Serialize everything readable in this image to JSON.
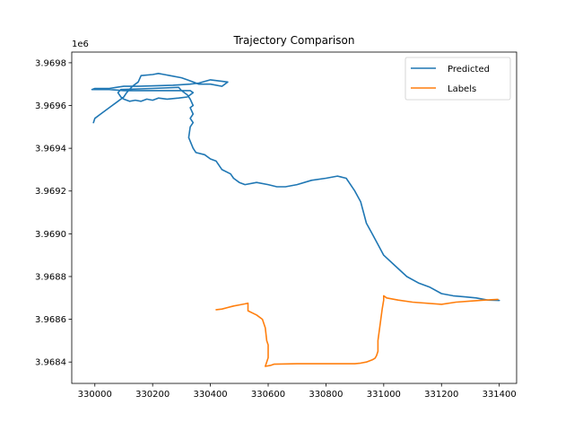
{
  "chart_data": {
    "type": "line",
    "title": "Trajectory Comparison",
    "xlabel": "",
    "ylabel": "",
    "y_offset_label": "1e6",
    "xlim": [
      329920,
      331460
    ],
    "ylim": [
      3968300,
      3969850
    ],
    "x_ticks": [
      330000,
      330200,
      330400,
      330600,
      330800,
      331000,
      331200,
      331400
    ],
    "x_tick_labels": [
      "330000",
      "330200",
      "330400",
      "330600",
      "330800",
      "331000",
      "331200",
      "331400"
    ],
    "y_ticks": [
      3968400,
      3968600,
      3968800,
      3969000,
      3969200,
      3969400,
      3969600,
      3969800
    ],
    "y_tick_labels": [
      "3.9684",
      "3.9686",
      "3.9688",
      "3.9690",
      "3.9692",
      "3.9694",
      "3.9696",
      "3.9698"
    ],
    "grid": false,
    "legend_position": "top-right",
    "series": [
      {
        "name": "Predicted",
        "color": "#1f77b4",
        "points": [
          [
            329995,
            3969520
          ],
          [
            330000,
            3969540
          ],
          [
            330020,
            3969560
          ],
          [
            330060,
            3969600
          ],
          [
            330080,
            3969620
          ],
          [
            330100,
            3969640
          ],
          [
            330110,
            3969660
          ],
          [
            330130,
            3969690
          ],
          [
            330140,
            3969700
          ],
          [
            330150,
            3969710
          ],
          [
            330160,
            3969740
          ],
          [
            330200,
            3969745
          ],
          [
            330220,
            3969750
          ],
          [
            330240,
            3969745
          ],
          [
            330260,
            3969740
          ],
          [
            330300,
            3969730
          ],
          [
            330320,
            3969720
          ],
          [
            330340,
            3969710
          ],
          [
            330360,
            3969700
          ],
          [
            330400,
            3969700
          ],
          [
            330440,
            3969690
          ],
          [
            330460,
            3969710
          ],
          [
            330400,
            3969720
          ],
          [
            330360,
            3969705
          ],
          [
            330330,
            3969700
          ],
          [
            330270,
            3969695
          ],
          [
            330150,
            3969690
          ],
          [
            330100,
            3969690
          ],
          [
            330050,
            3969680
          ],
          [
            330000,
            3969680
          ],
          [
            329990,
            3969675
          ],
          [
            330050,
            3969675
          ],
          [
            330100,
            3969670
          ],
          [
            330150,
            3969670
          ],
          [
            330200,
            3969670
          ],
          [
            330260,
            3969670
          ],
          [
            330300,
            3969670
          ],
          [
            330330,
            3969670
          ],
          [
            330340,
            3969660
          ],
          [
            330330,
            3969650
          ],
          [
            330320,
            3969640
          ],
          [
            330290,
            3969635
          ],
          [
            330250,
            3969630
          ],
          [
            330220,
            3969635
          ],
          [
            330200,
            3969625
          ],
          [
            330180,
            3969630
          ],
          [
            330160,
            3969620
          ],
          [
            330140,
            3969625
          ],
          [
            330120,
            3969620
          ],
          [
            330100,
            3969630
          ],
          [
            330090,
            3969640
          ],
          [
            330080,
            3969660
          ],
          [
            330090,
            3969675
          ],
          [
            330200,
            3969680
          ],
          [
            330290,
            3969685
          ],
          [
            330300,
            3969670
          ],
          [
            330320,
            3969650
          ],
          [
            330330,
            3969630
          ],
          [
            330340,
            3969600
          ],
          [
            330330,
            3969590
          ],
          [
            330340,
            3969560
          ],
          [
            330330,
            3969540
          ],
          [
            330340,
            3969520
          ],
          [
            330330,
            3969500
          ],
          [
            330325,
            3969450
          ],
          [
            330340,
            3969400
          ],
          [
            330350,
            3969380
          ],
          [
            330380,
            3969370
          ],
          [
            330400,
            3969350
          ],
          [
            330420,
            3969340
          ],
          [
            330440,
            3969300
          ],
          [
            330470,
            3969280
          ],
          [
            330480,
            3969260
          ],
          [
            330500,
            3969240
          ],
          [
            330520,
            3969230
          ],
          [
            330560,
            3969240
          ],
          [
            330600,
            3969230
          ],
          [
            330630,
            3969220
          ],
          [
            330660,
            3969220
          ],
          [
            330700,
            3969230
          ],
          [
            330750,
            3969250
          ],
          [
            330800,
            3969260
          ],
          [
            330840,
            3969270
          ],
          [
            330870,
            3969260
          ],
          [
            330880,
            3969240
          ],
          [
            330900,
            3969200
          ],
          [
            330920,
            3969150
          ],
          [
            330930,
            3969100
          ],
          [
            330940,
            3969050
          ],
          [
            330960,
            3969000
          ],
          [
            330980,
            3968950
          ],
          [
            331000,
            3968900
          ],
          [
            331040,
            3968850
          ],
          [
            331080,
            3968800
          ],
          [
            331120,
            3968770
          ],
          [
            331160,
            3968750
          ],
          [
            331200,
            3968720
          ],
          [
            331240,
            3968710
          ],
          [
            331280,
            3968705
          ],
          [
            331320,
            3968700
          ],
          [
            331360,
            3968690
          ],
          [
            331400,
            3968688
          ]
        ]
      },
      {
        "name": "Labels",
        "color": "#ff7f0e",
        "points": [
          [
            330420,
            3968645
          ],
          [
            330440,
            3968648
          ],
          [
            330460,
            3968655
          ],
          [
            330480,
            3968662
          ],
          [
            330500,
            3968667
          ],
          [
            330520,
            3968672
          ],
          [
            330530,
            3968675
          ],
          [
            330530,
            3968640
          ],
          [
            330560,
            3968620
          ],
          [
            330580,
            3968600
          ],
          [
            330590,
            3968560
          ],
          [
            330595,
            3968500
          ],
          [
            330600,
            3968480
          ],
          [
            330600,
            3968420
          ],
          [
            330590,
            3968380
          ],
          [
            330610,
            3968385
          ],
          [
            330620,
            3968390
          ],
          [
            330700,
            3968392
          ],
          [
            330800,
            3968392
          ],
          [
            330900,
            3968392
          ],
          [
            330920,
            3968395
          ],
          [
            330940,
            3968400
          ],
          [
            330960,
            3968410
          ],
          [
            330970,
            3968418
          ],
          [
            330975,
            3968430
          ],
          [
            330980,
            3968450
          ],
          [
            330980,
            3968500
          ],
          [
            330985,
            3968550
          ],
          [
            330990,
            3968600
          ],
          [
            330995,
            3968650
          ],
          [
            331000,
            3968690
          ],
          [
            331000,
            3968710
          ],
          [
            331010,
            3968700
          ],
          [
            331050,
            3968690
          ],
          [
            331100,
            3968680
          ],
          [
            331200,
            3968670
          ],
          [
            331250,
            3968680
          ],
          [
            331300,
            3968685
          ],
          [
            331350,
            3968690
          ],
          [
            331395,
            3968693
          ]
        ]
      }
    ]
  }
}
